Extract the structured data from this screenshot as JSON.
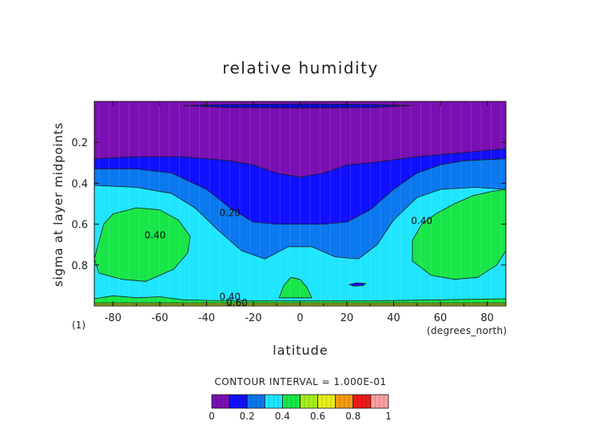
{
  "chart_data": {
    "type": "contour",
    "title": "relative humidity",
    "xlabel": "latitude",
    "ylabel": "sigma at layer midpoints",
    "x_units": "(degrees_north)",
    "panel_label": "(1)",
    "xlim": [
      -88,
      88
    ],
    "ylim": [
      0.0,
      1.0
    ],
    "y_inverted": true,
    "x_ticks": [
      -80,
      -60,
      -40,
      -20,
      0,
      20,
      40,
      60,
      80
    ],
    "y_ticks": [
      0.2,
      0.4,
      0.6,
      0.8
    ],
    "contour_interval_text": "CONTOUR INTERVAL = 1.000E-01",
    "contour_labels": [
      {
        "text": "0.20",
        "x": -30,
        "y": 0.56
      },
      {
        "text": "0.40",
        "x": -62,
        "y": 0.67
      },
      {
        "text": "0.40",
        "x": 52,
        "y": 0.6
      },
      {
        "text": "0.40",
        "x": -30,
        "y": 0.97
      },
      {
        "text": "0.60",
        "x": -27,
        "y": 1.0
      }
    ],
    "levels": [
      0,
      0.1,
      0.2,
      0.3,
      0.4,
      0.5,
      0.6,
      0.7,
      0.8,
      0.9,
      1.0
    ],
    "colorbar": {
      "colors": [
        "#7a0fb3",
        "#1010ff",
        "#0a78ee",
        "#1fe5ff",
        "#18e648",
        "#a6ee1a",
        "#e8ee18",
        "#f59b14",
        "#ee1a1a",
        "#fa9fa2"
      ],
      "tick_labels": [
        "0",
        "0.2",
        "0.4",
        "0.6",
        "0.8",
        "1"
      ]
    },
    "regions": [
      {
        "level": "0.1-0.2",
        "color": "#0a0ad8",
        "points": [
          [
            -50,
            0.02
          ],
          [
            -30,
            0.015
          ],
          [
            0,
            0.012
          ],
          [
            30,
            0.015
          ],
          [
            48,
            0.02
          ],
          [
            30,
            0.03
          ],
          [
            0,
            0.032
          ],
          [
            -30,
            0.03
          ]
        ]
      },
      {
        "level": "0.1-0.2",
        "color": "#1010ff",
        "points": [
          [
            -88,
            0.28
          ],
          [
            -70,
            0.27
          ],
          [
            -50,
            0.27
          ],
          [
            -30,
            0.29
          ],
          [
            -20,
            0.31
          ],
          [
            -10,
            0.35
          ],
          [
            0,
            0.37
          ],
          [
            10,
            0.35
          ],
          [
            20,
            0.31
          ],
          [
            30,
            0.3
          ],
          [
            50,
            0.27
          ],
          [
            70,
            0.25
          ],
          [
            88,
            0.23
          ],
          [
            88,
            1.0
          ],
          [
            -88,
            1.0
          ]
        ]
      },
      {
        "level": "0.2-0.3",
        "color": "#0a78ee",
        "points": [
          [
            -88,
            0.33
          ],
          [
            -70,
            0.33
          ],
          [
            -55,
            0.35
          ],
          [
            -40,
            0.43
          ],
          [
            -30,
            0.52
          ],
          [
            -20,
            0.59
          ],
          [
            -10,
            0.6
          ],
          [
            0,
            0.6
          ],
          [
            10,
            0.6
          ],
          [
            20,
            0.59
          ],
          [
            30,
            0.53
          ],
          [
            40,
            0.43
          ],
          [
            50,
            0.35
          ],
          [
            60,
            0.31
          ],
          [
            70,
            0.29
          ],
          [
            88,
            0.28
          ],
          [
            88,
            1.0
          ],
          [
            -88,
            1.0
          ]
        ]
      },
      {
        "level": "0.3-0.4",
        "color": "#1fe5ff",
        "points": [
          [
            -88,
            0.41
          ],
          [
            -70,
            0.42
          ],
          [
            -55,
            0.45
          ],
          [
            -45,
            0.52
          ],
          [
            -35,
            0.63
          ],
          [
            -25,
            0.73
          ],
          [
            -15,
            0.77
          ],
          [
            -5,
            0.71
          ],
          [
            5,
            0.71
          ],
          [
            15,
            0.76
          ],
          [
            25,
            0.77
          ],
          [
            33,
            0.7
          ],
          [
            40,
            0.58
          ],
          [
            50,
            0.47
          ],
          [
            60,
            0.43
          ],
          [
            75,
            0.42
          ],
          [
            88,
            0.43
          ],
          [
            88,
            1.0
          ],
          [
            -88,
            1.0
          ]
        ]
      },
      {
        "level": "0.4-0.5",
        "color": "#18e648",
        "points": [
          [
            -88,
            0.77
          ],
          [
            -84,
            0.6
          ],
          [
            -80,
            0.55
          ],
          [
            -70,
            0.52
          ],
          [
            -60,
            0.53
          ],
          [
            -52,
            0.58
          ],
          [
            -47,
            0.66
          ],
          [
            -48,
            0.74
          ],
          [
            -54,
            0.82
          ],
          [
            -66,
            0.88
          ],
          [
            -76,
            0.87
          ],
          [
            -86,
            0.84
          ]
        ]
      },
      {
        "level": "0.4-0.5",
        "color": "#18e648",
        "points": [
          [
            48,
            0.78
          ],
          [
            48,
            0.68
          ],
          [
            52,
            0.6
          ],
          [
            58,
            0.55
          ],
          [
            66,
            0.5
          ],
          [
            74,
            0.46
          ],
          [
            82,
            0.44
          ],
          [
            88,
            0.43
          ],
          [
            88,
            0.73
          ],
          [
            84,
            0.8
          ],
          [
            76,
            0.86
          ],
          [
            66,
            0.87
          ],
          [
            56,
            0.85
          ]
        ]
      },
      {
        "level": "0.4-0.5",
        "color": "#18e648",
        "points": [
          [
            -9,
            0.96
          ],
          [
            -7,
            0.9
          ],
          [
            -4,
            0.86
          ],
          [
            0,
            0.87
          ],
          [
            3,
            0.91
          ],
          [
            5,
            0.96
          ]
        ]
      },
      {
        "level": "0.4-0.5",
        "color": "#18e648",
        "points": [
          [
            -88,
            0.965
          ],
          [
            -80,
            0.95
          ],
          [
            -70,
            0.96
          ],
          [
            -60,
            0.955
          ],
          [
            -50,
            0.97
          ],
          [
            -30,
            0.975
          ],
          [
            0,
            0.975
          ],
          [
            30,
            0.975
          ],
          [
            60,
            0.97
          ],
          [
            88,
            0.965
          ],
          [
            88,
            1.0
          ],
          [
            -88,
            1.0
          ]
        ]
      },
      {
        "level": "0.5-0.6",
        "color": "#a6ee1a",
        "points": [
          [
            -88,
            0.985
          ],
          [
            0,
            0.985
          ],
          [
            88,
            0.985
          ],
          [
            88,
            1.0
          ],
          [
            -88,
            1.0
          ]
        ]
      },
      {
        "level": "0.6-0.7",
        "color": "#e8ee18",
        "points": [
          [
            -88,
            0.993
          ],
          [
            88,
            0.993
          ],
          [
            88,
            1.0
          ],
          [
            -88,
            1.0
          ]
        ]
      },
      {
        "level": "0.1-0.2",
        "color": "#1010ff",
        "points": [
          [
            21,
            0.895
          ],
          [
            24,
            0.887
          ],
          [
            28,
            0.89
          ],
          [
            27,
            0.9
          ],
          [
            23,
            0.903
          ]
        ]
      }
    ]
  }
}
